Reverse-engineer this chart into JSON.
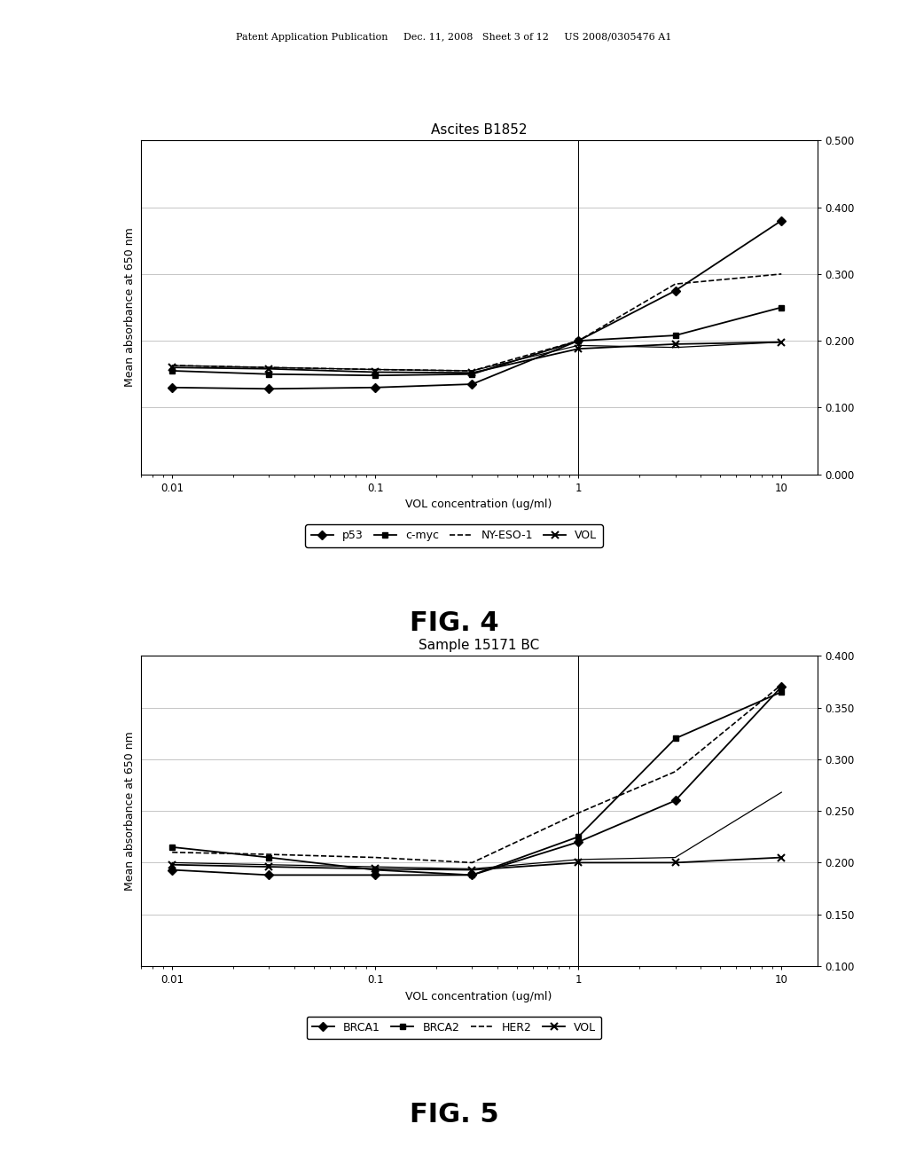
{
  "header_text": "Patent Application Publication     Dec. 11, 2008   Sheet 3 of 12     US 2008/0305476 A1",
  "fig4": {
    "title": "Ascites B1852",
    "xlabel": "VOL concentration (ug/ml)",
    "ylabel": "Mean absorbance at 650 nm",
    "x_values": [
      0.01,
      0.03,
      0.1,
      0.3,
      1.0,
      3.0,
      10.0
    ],
    "p53": [
      0.13,
      0.128,
      0.13,
      0.135,
      0.2,
      0.275,
      0.38
    ],
    "c_myc": [
      0.155,
      0.15,
      0.148,
      0.15,
      0.2,
      0.208,
      0.25
    ],
    "ny_eso1": [
      0.163,
      0.16,
      0.157,
      0.155,
      0.193,
      0.19,
      0.198
    ],
    "vol": [
      0.16,
      0.158,
      0.153,
      0.152,
      0.188,
      0.195,
      0.198
    ],
    "ny_eso1_dashed": [
      0.163,
      0.16,
      0.157,
      0.155,
      0.2,
      0.285,
      0.3
    ],
    "ylim": [
      0.0,
      0.5
    ],
    "yticks": [
      0.0,
      0.1,
      0.2,
      0.3,
      0.4,
      0.5
    ],
    "legend": [
      "p53",
      "c-myc",
      "NY-ESO-1",
      "VOL"
    ],
    "fig_label": "FIG. 4"
  },
  "fig5": {
    "title": "Sample 15171 BC",
    "xlabel": "VOL concentration (ug/ml)",
    "ylabel": "Mean absorbance at 650 nm",
    "x_values": [
      0.01,
      0.03,
      0.1,
      0.3,
      1.0,
      3.0,
      10.0
    ],
    "brca1": [
      0.193,
      0.188,
      0.188,
      0.188,
      0.22,
      0.26,
      0.37
    ],
    "brca2": [
      0.215,
      0.205,
      0.193,
      0.188,
      0.225,
      0.32,
      0.365
    ],
    "her2": [
      0.2,
      0.198,
      0.196,
      0.194,
      0.203,
      0.205,
      0.268
    ],
    "vol": [
      0.198,
      0.196,
      0.194,
      0.193,
      0.2,
      0.2,
      0.205
    ],
    "her2_dashed": [
      0.21,
      0.208,
      0.205,
      0.2,
      0.248,
      0.288,
      0.372
    ],
    "ylim": [
      0.1,
      0.4
    ],
    "yticks": [
      0.1,
      0.15,
      0.2,
      0.25,
      0.3,
      0.35,
      0.4
    ],
    "legend": [
      "BRCA1",
      "BRCA2",
      "HER2",
      "VOL"
    ],
    "fig_label": "FIG. 5"
  },
  "bg_color": "#ffffff",
  "line_color": "#000000",
  "grid_color": "#bbbbbb",
  "title_fontsize": 11,
  "label_fontsize": 9,
  "tick_fontsize": 8.5,
  "legend_fontsize": 9,
  "fig_label_fontsize": 22
}
